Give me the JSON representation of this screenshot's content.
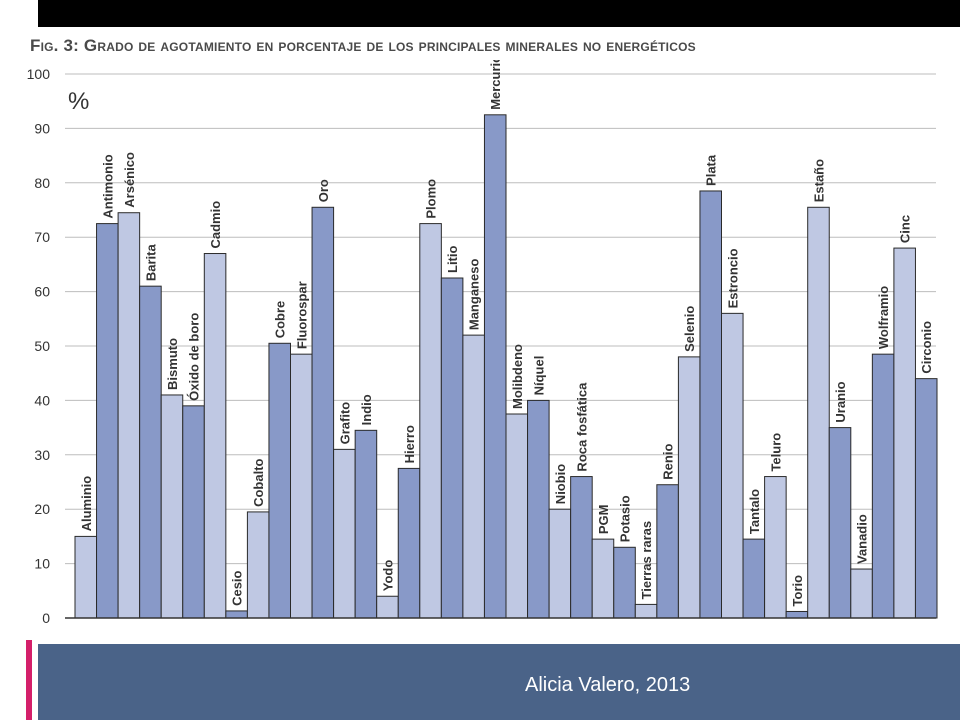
{
  "chart_data": {
    "type": "bar",
    "title": "Fig. 3: Grado de agotamiento en porcentaje de los principales minerales no energéticos",
    "ylabel": "%",
    "xlabel": "",
    "ylim": [
      0,
      100
    ],
    "yticks": [
      0,
      10,
      20,
      30,
      40,
      50,
      60,
      70,
      80,
      90,
      100
    ],
    "grid": true,
    "colors": {
      "dark": "#8899c8",
      "light": "#bfc8e3",
      "stroke": "#2a2a2a",
      "grid": "#bdbdbd"
    },
    "categories": [
      "Aluminio",
      "Antimonio",
      "Arsénico",
      "Barita",
      "Bismuto",
      "Óxido de boro",
      "Cadmio",
      "Cesio",
      "Cobalto",
      "Cobre",
      "Fluorospar",
      "Oro",
      "Grafito",
      "Indio",
      "Yodo",
      "Hierro",
      "Plomo",
      "Litio",
      "Manganeso",
      "Mercurio",
      "Molibdeno",
      "Níquel",
      "Niobio",
      "Roca fosfática",
      "PGM",
      "Potasio",
      "Tierras raras",
      "Renio",
      "Selenio",
      "Plata",
      "Estroncio",
      "Tantalo",
      "Teluro",
      "Torio",
      "Estaño",
      "Uranio",
      "Vanadio",
      "Wolframio",
      "Cinc",
      "Circonio"
    ],
    "values": [
      15,
      72.5,
      74.5,
      61,
      41,
      39,
      67,
      1.3,
      19.5,
      50.5,
      48.5,
      75.5,
      31,
      34.5,
      4,
      27.5,
      72.5,
      62.5,
      52,
      92.5,
      37.5,
      40,
      20,
      26,
      14.5,
      13,
      2.5,
      24.5,
      48,
      78.5,
      56,
      14.5,
      26,
      1.2,
      75.5,
      35,
      9,
      48.5,
      68,
      44
    ],
    "shades": [
      "light",
      "dark",
      "light",
      "dark",
      "light",
      "dark",
      "light",
      "dark",
      "light",
      "dark",
      "light",
      "dark",
      "light",
      "dark",
      "light",
      "dark",
      "light",
      "dark",
      "light",
      "dark",
      "light",
      "dark",
      "light",
      "dark",
      "light",
      "dark",
      "light",
      "dark",
      "light",
      "dark",
      "light",
      "dark",
      "light",
      "dark",
      "light",
      "dark",
      "light",
      "dark",
      "light",
      "dark"
    ]
  },
  "footer": {
    "credit": "Alicia Valero, 2013"
  }
}
